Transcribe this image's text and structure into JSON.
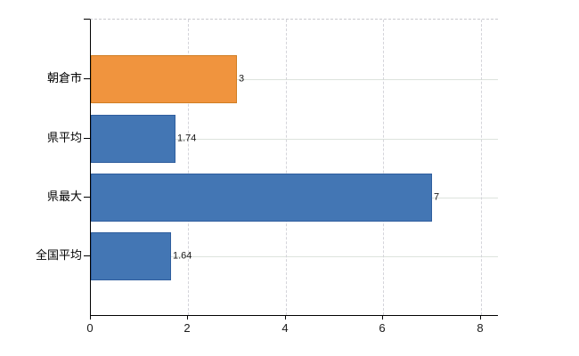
{
  "chart_data": {
    "type": "bar",
    "orientation": "horizontal",
    "categories": [
      "朝倉市",
      "県平均",
      "県最大",
      "全国平均"
    ],
    "values": [
      3,
      1.74,
      7,
      1.64
    ],
    "value_labels": [
      "3",
      "1.74",
      "7",
      "1.64"
    ],
    "series": [
      {
        "name": "value",
        "values": [
          3,
          1.74,
          7,
          1.64
        ]
      }
    ],
    "bar_colors": [
      "#F0943E",
      "#4376B4",
      "#4376B4",
      "#4376B4"
    ],
    "bar_border_colors": [
      "#D07E23",
      "#2F5E9E",
      "#2F5E9E",
      "#2F5E9E"
    ],
    "highlight_category": "朝倉市",
    "xlim": [
      0,
      8.37
    ],
    "x_ticks": [
      0,
      2,
      4,
      6,
      8
    ],
    "x_tick_labels": [
      "0",
      "2",
      "4",
      "6",
      "8"
    ],
    "grid": {
      "vertical_dashed_at": [
        2,
        4,
        6,
        8
      ],
      "horizontal_through_bar_centers": true,
      "top_border_dashed": true
    },
    "legend": "none",
    "title": "",
    "xlabel": "",
    "ylabel": ""
  },
  "colors": {
    "accent_orange": "#F0943E",
    "series_blue": "#4376B4",
    "axis": "#000000",
    "hgrid": "#dde3dd",
    "vgrid": "#d4d4da",
    "text": "#1a1a1a"
  }
}
